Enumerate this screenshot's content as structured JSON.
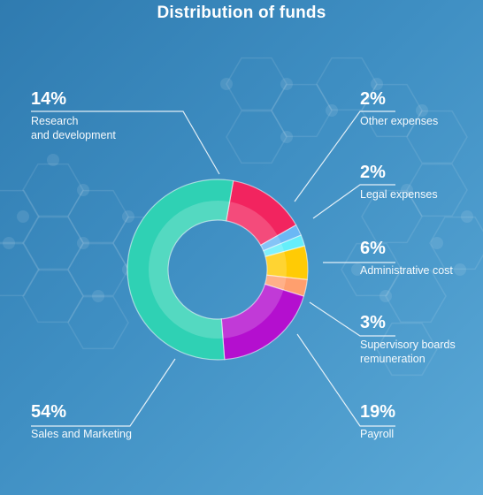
{
  "title": "Distribution of funds",
  "chart_data": {
    "type": "pie",
    "variant": "donut",
    "title": "Distribution of funds",
    "slices": [
      {
        "label": "Research\nand development",
        "percent_label": "14%",
        "value": 14,
        "color": "#f2245f"
      },
      {
        "label": "Other expenses",
        "percent_label": "2%",
        "value": 2,
        "color": "#6bb8f5"
      },
      {
        "label": "Legal expenses",
        "percent_label": "2%",
        "value": 2,
        "color": "#65eefa"
      },
      {
        "label": "Administrative cost",
        "percent_label": "6%",
        "value": 6,
        "color": "#ffcb05"
      },
      {
        "label": "Supervisory boards\nremuneration",
        "percent_label": "3%",
        "value": 3,
        "color": "#ff9f6e"
      },
      {
        "label": "Payroll",
        "percent_label": "19%",
        "value": 19,
        "color": "#b40fcf"
      },
      {
        "label": "Sales and Marketing",
        "percent_label": "54%",
        "value": 54,
        "color": "#2fd1b4"
      }
    ]
  }
}
